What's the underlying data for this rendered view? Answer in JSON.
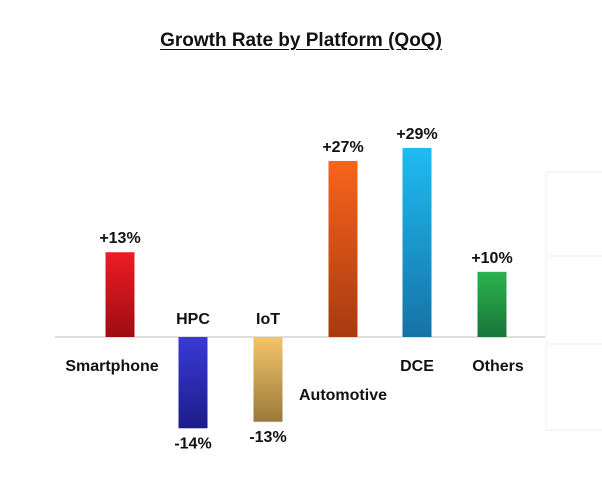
{
  "chart_data": {
    "type": "bar",
    "title": "Growth Rate by Platform (QoQ)",
    "xlabel": "",
    "ylabel": "",
    "unit": "%",
    "ylim": [
      -14,
      29
    ],
    "categories": [
      "Smartphone",
      "HPC",
      "IoT",
      "Automotive",
      "DCE",
      "Others"
    ],
    "values": [
      13,
      -14,
      -13,
      27,
      29,
      10
    ],
    "data_labels": [
      "+13%",
      "-14%",
      "-13%",
      "+27%",
      "+29%",
      "+10%"
    ],
    "colors": [
      [
        "#ee1c25",
        "#9e0c12"
      ],
      [
        "#3a3ad8",
        "#1c1c88"
      ],
      [
        "#f5c46a",
        "#9a7a3a"
      ],
      [
        "#f8641c",
        "#a83a10"
      ],
      [
        "#1ebcf2",
        "#1672a6"
      ],
      [
        "#2cb34e",
        "#17753a"
      ]
    ],
    "grid": false,
    "legend": "none"
  }
}
